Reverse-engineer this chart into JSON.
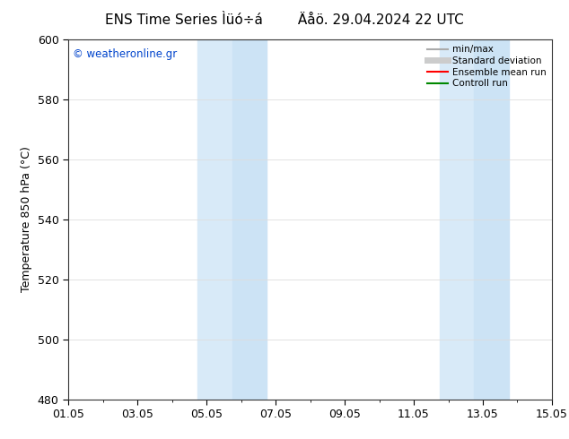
{
  "title1": "ENS Time Series Ìüó÷á",
  "title2": "Äåö. 29.04.2024 22 UTC",
  "ylabel": "Temperature 850 hPa (°C)",
  "watermark": "© weatheronline.gr",
  "ylim": [
    480,
    600
  ],
  "yticks": [
    480,
    500,
    520,
    540,
    560,
    580,
    600
  ],
  "shaded_bands": [
    {
      "xstart": 3.75,
      "xend": 4.75
    },
    {
      "xstart": 4.75,
      "xend": 5.75
    },
    {
      "xstart": 10.75,
      "xend": 11.75
    },
    {
      "xstart": 11.75,
      "xend": 12.75
    }
  ],
  "band_colors": [
    "#d8eaf8",
    "#cce3f5",
    "#d8eaf8",
    "#cce3f5"
  ],
  "bg_color": "#ffffff",
  "title_fontsize": 11,
  "axis_fontsize": 9,
  "tick_fontsize": 9,
  "legend_items": [
    {
      "label": "min/max",
      "color": "#aaaaaa",
      "lw": 1.5
    },
    {
      "label": "Standard deviation",
      "color": "#cccccc",
      "lw": 5
    },
    {
      "label": "Ensemble mean run",
      "color": "#ff0000",
      "lw": 1.5
    },
    {
      "label": "Controll run",
      "color": "#008800",
      "lw": 1.5
    }
  ],
  "watermark_color": "#0044cc",
  "grid_color": "#dddddd",
  "xtick_positions": [
    0,
    2,
    4,
    6,
    8,
    10,
    12,
    14
  ],
  "xtick_labels": [
    "01.05",
    "03.05",
    "05.05",
    "07.05",
    "09.05",
    "11.05",
    "13.05",
    "15.05"
  ]
}
